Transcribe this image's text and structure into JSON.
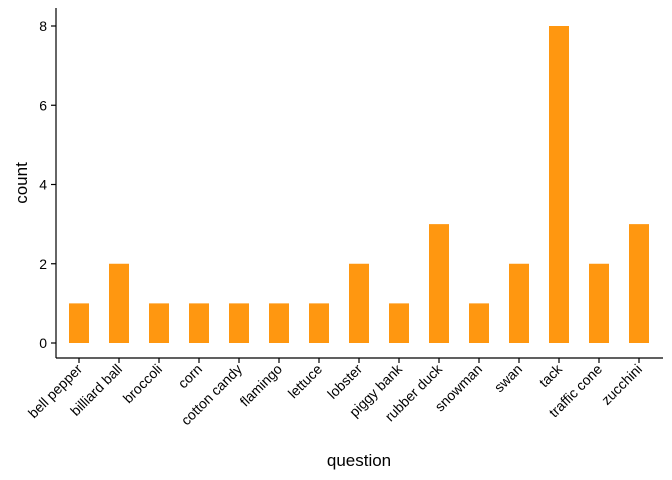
{
  "chart_data": {
    "type": "bar",
    "title": "",
    "xlabel": "question",
    "ylabel": "count",
    "categories": [
      "bell pepper",
      "billiard ball",
      "broccoli",
      "corn",
      "cotton candy",
      "flamingo",
      "lettuce",
      "lobster",
      "piggy bank",
      "rubber duck",
      "snowman",
      "swan",
      "tack",
      "traffic cone",
      "zucchini"
    ],
    "values": [
      1,
      2,
      1,
      1,
      1,
      1,
      1,
      2,
      1,
      3,
      1,
      2,
      8,
      2,
      3
    ],
    "ylim": [
      0,
      8
    ],
    "yticks": [
      0,
      2,
      4,
      6,
      8
    ],
    "grid": false,
    "bar_color": "#ff9710"
  }
}
